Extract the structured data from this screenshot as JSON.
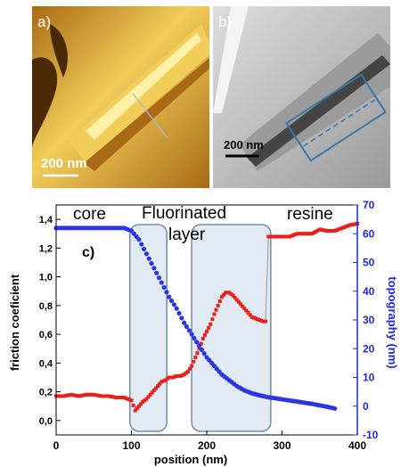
{
  "image_a": {
    "label": "a)",
    "scale_text": "200 nm",
    "colors": {
      "dark": "#4a2a06",
      "mid": "#a86a14",
      "bright": "#f2cd5a",
      "highlight": "#fff2a8"
    }
  },
  "image_b": {
    "label": "b)",
    "scale_text": "200 nm",
    "colors": {
      "light": "#dedede",
      "mid": "#9b9b9b",
      "dark": "#444444",
      "box": "#3a78a8"
    }
  },
  "chart_data": {
    "type": "scatter",
    "panel_label": "c)",
    "xlabel": "position (nm)",
    "ylabel_left": "friction coeficient",
    "ylabel_right": "topography (nm)",
    "xlim": [
      0,
      400
    ],
    "ylim_left": [
      -0.1,
      1.5
    ],
    "ylim_right": [
      -10,
      70
    ],
    "x_ticks": [
      0,
      100,
      200,
      300,
      400
    ],
    "y_left_ticks": [
      "0,0",
      "0,2",
      "0,4",
      "0,6",
      "0,8",
      "1,0",
      "1,2",
      "1,4"
    ],
    "y_right_ticks": [
      -10,
      0,
      10,
      20,
      30,
      40,
      50,
      60,
      70
    ],
    "regions": [
      {
        "text": "core"
      },
      {
        "text": "Fluorinated",
        "text2": "layer"
      },
      {
        "text": "resine"
      }
    ],
    "shaded_bands": [
      [
        98,
        147
      ],
      [
        180,
        285
      ]
    ],
    "colors": {
      "friction": "#e8211d",
      "topography": "#2a35e6",
      "band_fill": "#dde8f2",
      "band_stroke": "#5d7b93",
      "right_axis": "#1e28e0"
    },
    "series": [
      {
        "axis": "left",
        "color": "#e8211d",
        "x": [
          0,
          10,
          20,
          30,
          40,
          50,
          60,
          70,
          80,
          90,
          95,
          100,
          105,
          110,
          115,
          120,
          125,
          130,
          135,
          140,
          145,
          150,
          155,
          160,
          165,
          170,
          175,
          180,
          185,
          190,
          195,
          200,
          205,
          210,
          215,
          220,
          225,
          230,
          235,
          240,
          245,
          250,
          255,
          260,
          265,
          270,
          275,
          278,
          282,
          290,
          300,
          310,
          320,
          330,
          340,
          350,
          360,
          370,
          380,
          390,
          400
        ],
        "values": [
          0.17,
          0.17,
          0.18,
          0.17,
          0.18,
          0.18,
          0.17,
          0.17,
          0.16,
          0.16,
          0.15,
          0.14,
          0.07,
          0.1,
          0.13,
          0.15,
          0.18,
          0.21,
          0.24,
          0.27,
          0.28,
          0.3,
          0.3,
          0.31,
          0.31,
          0.32,
          0.34,
          0.38,
          0.44,
          0.5,
          0.57,
          0.62,
          0.67,
          0.74,
          0.8,
          0.86,
          0.89,
          0.89,
          0.87,
          0.84,
          0.81,
          0.78,
          0.75,
          0.72,
          0.71,
          0.7,
          0.69,
          0.69,
          1.28,
          1.28,
          1.28,
          1.28,
          1.3,
          1.3,
          1.3,
          1.33,
          1.32,
          1.32,
          1.34,
          1.36,
          1.37
        ]
      },
      {
        "axis": "right",
        "color": "#2a35e6",
        "x": [
          0,
          10,
          20,
          30,
          40,
          50,
          60,
          70,
          80,
          90,
          100,
          110,
          120,
          130,
          140,
          150,
          160,
          170,
          180,
          190,
          200,
          210,
          220,
          230,
          240,
          250,
          260,
          270,
          280,
          290,
          300,
          310,
          320,
          330,
          340,
          350,
          360,
          370
        ],
        "values": [
          62,
          62,
          62,
          62,
          62,
          62,
          62,
          62,
          62,
          62,
          61,
          58,
          53,
          48,
          43,
          38,
          34,
          29,
          25,
          21,
          17,
          14,
          11,
          9,
          7,
          5.5,
          4.5,
          3.8,
          3.2,
          2.8,
          2.4,
          2,
          1.6,
          1.2,
          0.8,
          0.3,
          -0.2,
          -0.8
        ]
      }
    ]
  }
}
